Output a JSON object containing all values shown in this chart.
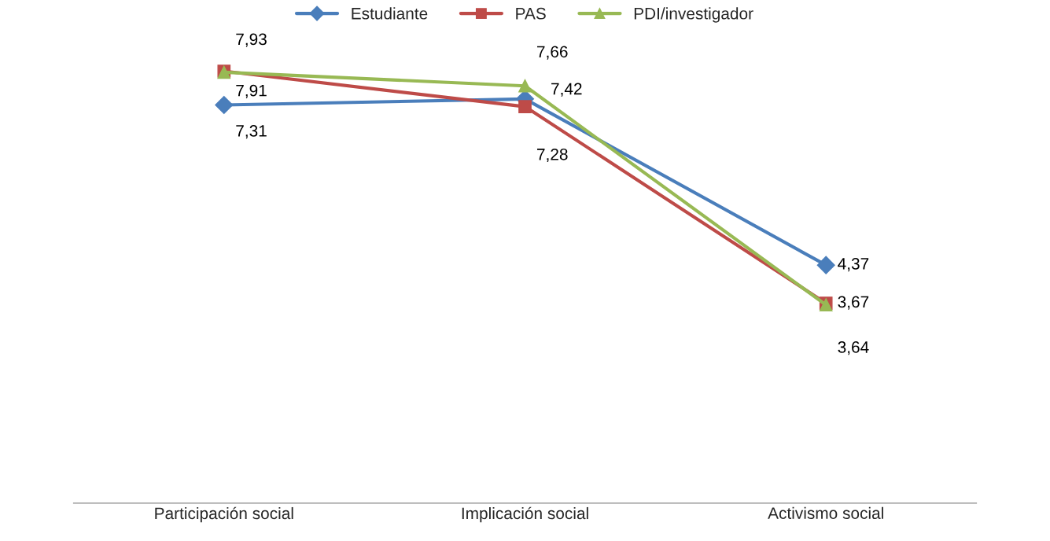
{
  "chart_data": {
    "type": "line",
    "categories": [
      "Participación social",
      "Implicación social",
      "Activismo social"
    ],
    "series": [
      {
        "name": "Estudiante",
        "color": "#4a7ebb",
        "marker": "diamond",
        "values": [
          7.31,
          7.42,
          4.37
        ],
        "value_labels": [
          "7,31",
          "7,42",
          "4,37"
        ]
      },
      {
        "name": "PAS",
        "color": "#be4b48",
        "marker": "square",
        "values": [
          7.93,
          7.28,
          3.67
        ],
        "value_labels": [
          "7,93",
          "7,28",
          "3,67"
        ]
      },
      {
        "name": "PDI/investigador",
        "color": "#98b954",
        "marker": "triangle",
        "values": [
          7.91,
          7.66,
          3.64
        ],
        "value_labels": [
          "7,91",
          "7,66",
          "3,64"
        ]
      }
    ],
    "tick_labels": "x",
    "legend": "top",
    "grid": false
  }
}
